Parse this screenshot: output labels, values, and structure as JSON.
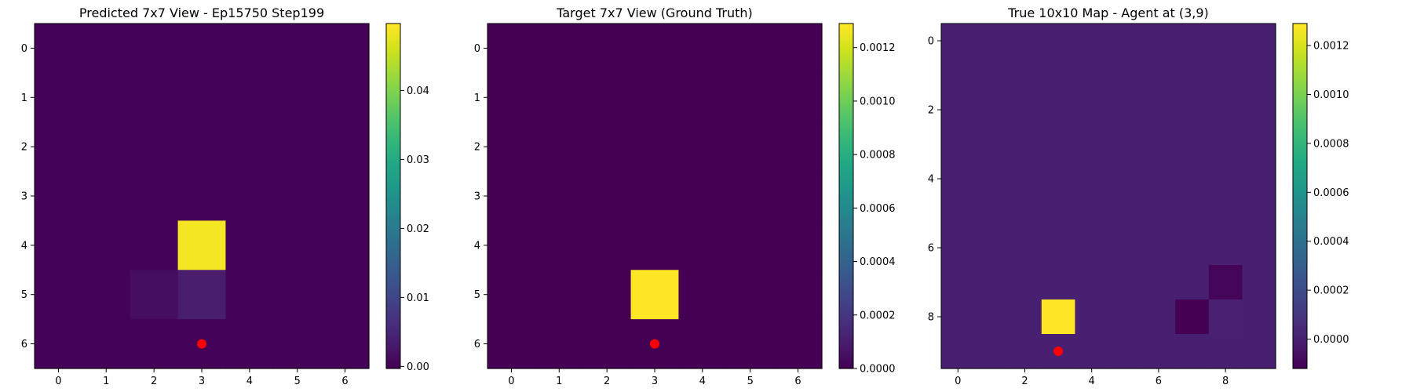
{
  "charts": [
    {
      "type": "heatmap",
      "title": "Predicted 7x7 View - Ep15750 Step199",
      "x_ticks": [
        "0",
        "1",
        "2",
        "3",
        "4",
        "5",
        "6"
      ],
      "y_ticks": [
        "0",
        "1",
        "2",
        "3",
        "4",
        "5",
        "6"
      ],
      "colorbar_ticks": [
        "0.00",
        "0.01",
        "0.02",
        "0.03",
        "0.04"
      ],
      "colorbar_range": [
        -0.0003,
        0.0497
      ],
      "colorbar_tick_values": [
        0,
        0.01,
        0.02,
        0.03,
        0.04
      ],
      "agent": {
        "x": 3,
        "y": 6
      },
      "grid": [
        [
          0,
          0,
          0,
          0,
          0,
          0,
          0
        ],
        [
          0,
          0,
          0,
          0,
          0,
          0,
          0
        ],
        [
          0,
          0,
          0,
          0,
          0,
          0,
          0
        ],
        [
          0,
          0,
          0,
          0,
          0,
          0,
          0
        ],
        [
          0,
          0,
          0,
          0.049,
          0,
          0,
          0
        ],
        [
          0,
          0,
          0.0015,
          0.0035,
          0,
          0,
          0
        ],
        [
          0,
          0,
          0,
          0,
          0,
          0,
          0
        ]
      ]
    },
    {
      "type": "heatmap",
      "title": "Target 7x7 View (Ground Truth)",
      "x_ticks": [
        "0",
        "1",
        "2",
        "3",
        "4",
        "5",
        "6"
      ],
      "y_ticks": [
        "0",
        "1",
        "2",
        "3",
        "4",
        "5",
        "6"
      ],
      "colorbar_ticks": [
        "0.0000",
        "0.0002",
        "0.0004",
        "0.0006",
        "0.0008",
        "0.0010",
        "0.0012"
      ],
      "colorbar_range": [
        0,
        0.00129
      ],
      "colorbar_tick_values": [
        0,
        0.0002,
        0.0004,
        0.0006,
        0.0008,
        0.001,
        0.0012
      ],
      "agent": {
        "x": 3,
        "y": 6
      },
      "grid": [
        [
          0,
          0,
          0,
          0,
          0,
          0,
          0
        ],
        [
          0,
          0,
          0,
          0,
          0,
          0,
          0
        ],
        [
          0,
          0,
          0,
          0,
          0,
          0,
          0
        ],
        [
          0,
          0,
          0,
          0,
          0,
          0,
          0
        ],
        [
          0,
          0,
          0,
          0,
          0,
          0,
          0
        ],
        [
          0,
          0,
          0,
          0.00129,
          0,
          0,
          0
        ],
        [
          0,
          0,
          0,
          0,
          0,
          0,
          0
        ]
      ]
    },
    {
      "type": "heatmap",
      "title": "True 10x10 Map - Agent at (3,9)",
      "x_ticks": [
        "0",
        "2",
        "4",
        "6",
        "8"
      ],
      "y_ticks": [
        "0",
        "2",
        "4",
        "6",
        "8"
      ],
      "colorbar_ticks": [
        "0.0000",
        "0.0002",
        "0.0004",
        "0.0006",
        "0.0008",
        "0.0010",
        "0.0012"
      ],
      "colorbar_range": [
        -0.00012,
        0.00129
      ],
      "colorbar_tick_values": [
        0,
        0.0002,
        0.0004,
        0.0006,
        0.0008,
        0.001,
        0.0012
      ],
      "agent": {
        "x": 3,
        "y": 9
      },
      "grid": [
        [
          0.0,
          0.0,
          0.0,
          0,
          0,
          0,
          0,
          0,
          0,
          0
        ],
        [
          0,
          0,
          0,
          0,
          0,
          0,
          0,
          0,
          0,
          0
        ],
        [
          0,
          0,
          0,
          0,
          0,
          0,
          0,
          0,
          0,
          0
        ],
        [
          0,
          0,
          0,
          0,
          0,
          0,
          0,
          0,
          0,
          0
        ],
        [
          0,
          0,
          0,
          0,
          0,
          0,
          0,
          0,
          0,
          0
        ],
        [
          0,
          0,
          0,
          0,
          0,
          0,
          0,
          0,
          0,
          0
        ],
        [
          0,
          0,
          0,
          0,
          0,
          0,
          0,
          0,
          3e-06,
          0
        ],
        [
          0,
          0,
          0,
          0,
          0,
          0,
          0,
          0,
          -0.00011,
          0
        ],
        [
          0,
          0,
          0,
          0.00129,
          0,
          0,
          0,
          -0.00012,
          5e-06,
          0
        ],
        [
          0,
          0,
          0,
          0,
          0,
          0,
          0,
          0,
          0,
          0
        ]
      ]
    }
  ],
  "colors": {
    "agent": "#ff0000"
  }
}
